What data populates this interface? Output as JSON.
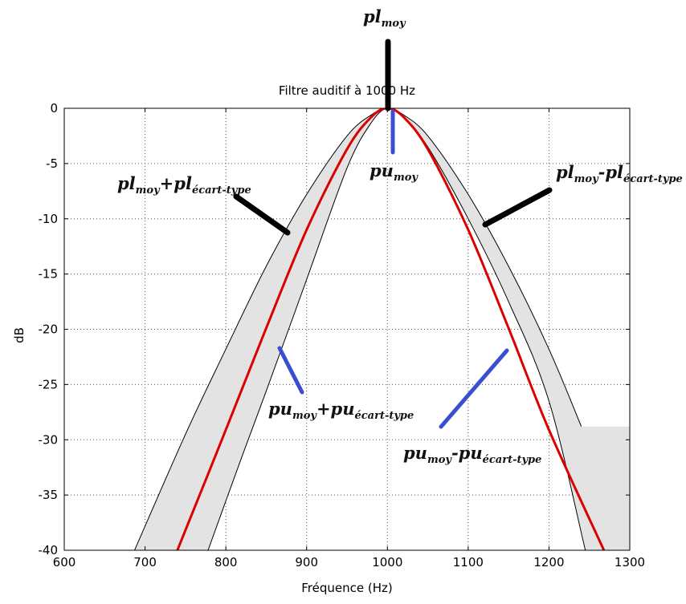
{
  "chart_data": {
    "type": "line",
    "title": "Filtre auditif à 1000 Hz",
    "xlabel": "Fréquence (Hz)",
    "ylabel": "dB",
    "xlim": [
      600,
      1300
    ],
    "ylim": [
      -40,
      0
    ],
    "xticks": [
      600,
      700,
      800,
      900,
      1000,
      1100,
      1200,
      1300
    ],
    "yticks": [
      0,
      -5,
      -10,
      -15,
      -20,
      -25,
      -30,
      -35,
      -40
    ],
    "grid": true,
    "center_frequency": 1000,
    "series": [
      {
        "role": "mean",
        "color": "#dd0000",
        "x": [
          740,
          800,
          850,
          900,
          950,
          980,
          1000,
          1020,
          1050,
          1100,
          1150,
          1200,
          1268
        ],
        "y": [
          -40,
          -29.1,
          -19.9,
          -11,
          -3.7,
          -0.8,
          0,
          -0.8,
          -3.7,
          -11,
          -19.9,
          -29.1,
          -40
        ]
      },
      {
        "role": "upper-bound",
        "color": "#000000",
        "x": [
          687,
          750,
          800,
          850,
          900,
          950,
          980,
          1000,
          1020,
          1050,
          1100,
          1150,
          1200,
          1240
        ],
        "y": [
          -40,
          -29.5,
          -21.8,
          -14.3,
          -7.8,
          -2.5,
          -0.6,
          0,
          -0.6,
          -2.5,
          -7.8,
          -14.3,
          -21.8,
          -28.8
        ]
      },
      {
        "role": "lower-bound",
        "color": "#000000",
        "x": [
          778,
          820,
          850,
          900,
          950,
          980,
          1000,
          1020,
          1050,
          1100,
          1150,
          1200,
          1245
        ],
        "y": [
          -40,
          -31.5,
          -25.6,
          -15.5,
          -5.4,
          -1.3,
          0,
          -0.8,
          -3.5,
          -10,
          -17.5,
          -26.5,
          -40
        ]
      }
    ],
    "band_color": "#e3e3e3",
    "annotations": [
      {
        "id": "pl-moy",
        "base": "pl",
        "sub": "moy"
      },
      {
        "id": "pu-moy",
        "base": "pu",
        "sub": "moy"
      },
      {
        "id": "pl-plus",
        "base": "pl",
        "sub": "moy",
        "op": "+",
        "base2": "pl",
        "sub2": "écart-type"
      },
      {
        "id": "pl-minus",
        "base": "pl",
        "sub": "moy",
        "op": "-",
        "base2": "pl",
        "sub2": "écart-type"
      },
      {
        "id": "pu-plus",
        "base": "pu",
        "sub": "moy",
        "op": "+",
        "base2": "pu",
        "sub2": "écart-type"
      },
      {
        "id": "pu-minus",
        "base": "pu",
        "sub": "moy",
        "op": "-",
        "base2": "pu",
        "sub2": "écart-type"
      }
    ],
    "annotation_colors": {
      "pl": "#000000",
      "pu": "#3a4fd0"
    }
  }
}
